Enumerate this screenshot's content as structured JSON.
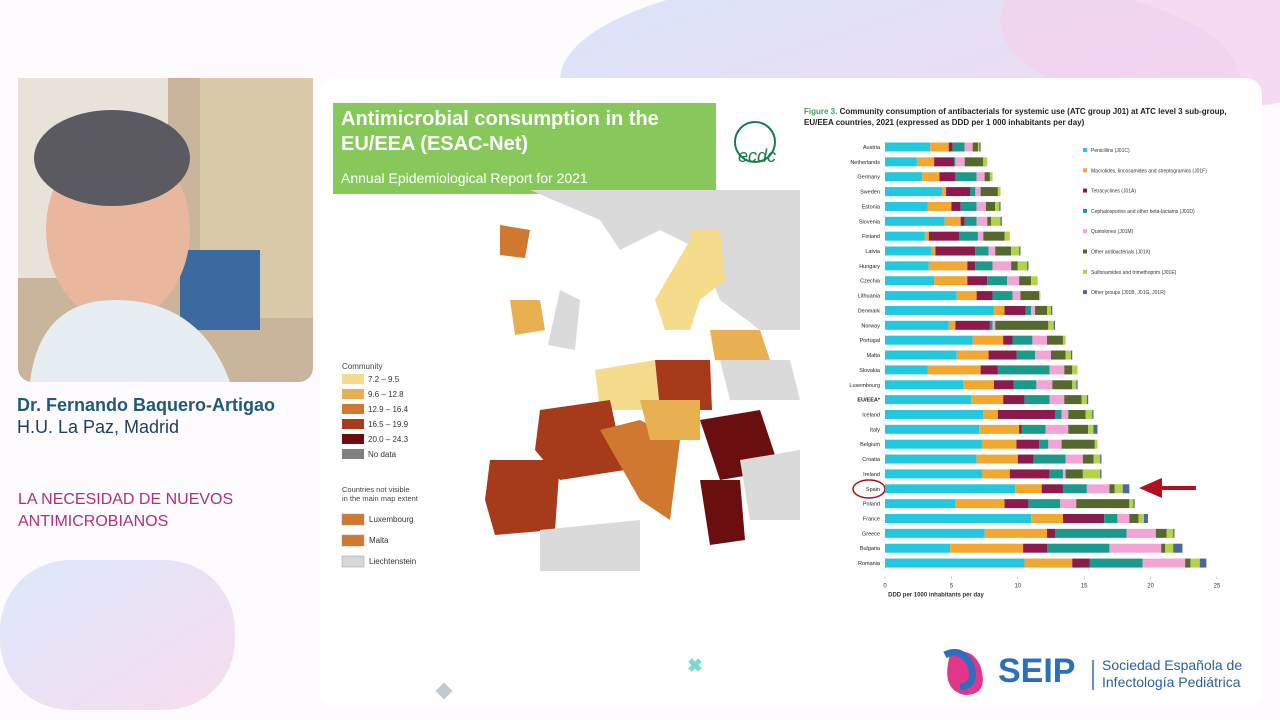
{
  "speaker": {
    "name": "Dr. Fernando Baquero-Artigao",
    "affiliation": "H.U. La Paz, Madrid"
  },
  "slide": {
    "topic": [
      "LA NECESIDAD DE NUEVOS",
      "ANTIMICROBIANOS"
    ],
    "header_title": "Antimicrobial consumption in the EU/EEA (ESAC-Net)",
    "header_subtitle": "Annual Epidemiological Report for 2021",
    "logo_ecdc": "ecdc"
  },
  "map_legend": {
    "title": "Community",
    "items": [
      {
        "label": "7.2 – 9.5",
        "color": "#f5dc8c"
      },
      {
        "label": "9.6 – 12.8",
        "color": "#e8b050"
      },
      {
        "label": "12.9 – 16.4",
        "color": "#d07830"
      },
      {
        "label": "16.5 – 19.9",
        "color": "#a83a1c"
      },
      {
        "label": "20.0 – 24.3",
        "color": "#6a0e10"
      },
      {
        "label": "No data",
        "color": "#808080"
      }
    ],
    "extra_title": [
      "Countries not visible",
      "in the main map extent"
    ],
    "extra_items": [
      {
        "label": "Luxembourg",
        "color": "#d07830"
      },
      {
        "label": "Malta",
        "color": "#d07830"
      },
      {
        "label": "Liechtenstein",
        "color": "#d8d8d8"
      }
    ]
  },
  "chart_data": {
    "type": "bar",
    "orientation": "horizontal",
    "stacked": true,
    "title_prefix": "Figure 3.",
    "title": "Community consumption of antibacterials for systemic use (ATC group J01) at ATC level 3 sub-group, EU/EEA countries, 2021 (expressed as DDD per 1 000 inhabitants per day)",
    "categories": [
      "Austria",
      "Netherlands",
      "Germany",
      "Sweden",
      "Estonia",
      "Slovenia",
      "Finland",
      "Latvia",
      "Hungary",
      "Czechia",
      "Lithuania",
      "Denmark",
      "Norway",
      "Portugal",
      "Malta",
      "Slovakia",
      "Luxembourg",
      "EU/EEA*",
      "Iceland",
      "Italy",
      "Belgium",
      "Croatia",
      "Ireland",
      "Spain",
      "Poland",
      "France",
      "Greece",
      "Bulgaria",
      "Romania"
    ],
    "series": [
      {
        "name": "Penicillins (J01C)",
        "color": "#22c8e0",
        "values": [
          3.4,
          2.4,
          2.8,
          4.3,
          3.2,
          4.5,
          3.0,
          3.5,
          3.3,
          3.7,
          5.4,
          8.2,
          4.8,
          6.6,
          5.4,
          3.2,
          5.9,
          6.5,
          7.4,
          7.1,
          7.3,
          6.9,
          7.3,
          9.8,
          5.3,
          11.0,
          7.5,
          4.9,
          10.5
        ]
      },
      {
        "name": "Macrolides, lincosamides and streptogramins (J01F)",
        "color": "#f2a830",
        "values": [
          1.4,
          1.3,
          1.3,
          0.3,
          1.8,
          1.2,
          0.3,
          0.3,
          2.9,
          2.5,
          1.5,
          0.8,
          0.5,
          2.3,
          2.4,
          4.0,
          2.3,
          2.4,
          1.1,
          3.0,
          2.6,
          3.1,
          2.1,
          2.0,
          3.7,
          2.4,
          4.7,
          5.5,
          3.6
        ]
      },
      {
        "name": "Tetracyclines (J01A)",
        "color": "#8c1a4c",
        "values": [
          0.3,
          1.5,
          1.2,
          1.8,
          0.7,
          0.3,
          2.3,
          3.0,
          0.6,
          1.5,
          1.2,
          1.6,
          2.6,
          0.7,
          2.1,
          1.3,
          1.5,
          1.6,
          4.3,
          0.2,
          1.7,
          1.2,
          3.0,
          1.6,
          1.8,
          3.1,
          0.6,
          1.8,
          1.3
        ]
      },
      {
        "name": "Cephalosporins and other beta-lactams (J01D)",
        "color": "#1a9a8c",
        "values": [
          0.9,
          0.1,
          1.6,
          0.4,
          1.2,
          0.9,
          1.4,
          1.0,
          1.3,
          1.5,
          1.5,
          0.4,
          0.2,
          1.5,
          1.4,
          3.9,
          1.7,
          1.9,
          0.5,
          1.8,
          0.7,
          2.4,
          1.0,
          1.8,
          2.4,
          1.0,
          5.4,
          4.7,
          4.0
        ]
      },
      {
        "name": "Quinolones (J01M)",
        "color": "#f4a4d4",
        "values": [
          0.6,
          0.7,
          0.6,
          0.4,
          0.7,
          0.8,
          0.4,
          0.5,
          1.4,
          0.9,
          0.6,
          0.3,
          0.2,
          1.1,
          1.2,
          1.1,
          1.2,
          1.1,
          0.5,
          1.7,
          1.0,
          1.3,
          0.2,
          1.7,
          1.2,
          0.9,
          2.2,
          3.9,
          3.2
        ]
      },
      {
        "name": "Other antibacterials (J01X)",
        "color": "#56682e",
        "values": [
          0.4,
          1.4,
          0.4,
          1.3,
          0.7,
          0.3,
          1.6,
          1.2,
          0.5,
          0.9,
          1.4,
          0.9,
          4.0,
          1.2,
          1.1,
          0.6,
          1.5,
          1.3,
          1.3,
          1.5,
          2.5,
          0.8,
          1.3,
          0.4,
          4.0,
          0.7,
          0.8,
          0.3,
          0.4
        ]
      },
      {
        "name": "Sulfonamides and trimethoprim (J01E)",
        "color": "#b4d448",
        "values": [
          0.1,
          0.3,
          0.2,
          0.2,
          0.3,
          0.7,
          0.4,
          0.6,
          0.7,
          0.5,
          0.1,
          0.3,
          0.4,
          0.2,
          0.4,
          0.4,
          0.3,
          0.4,
          0.5,
          0.4,
          0.2,
          0.5,
          1.3,
          0.6,
          0.3,
          0.4,
          0.5,
          0.6,
          0.7
        ]
      },
      {
        "name": "Other groups (J01B, J01G, J01R)",
        "color": "#4a6a9c",
        "values": [
          0.1,
          0.0,
          0.0,
          0.0,
          0.1,
          0.1,
          0.0,
          0.1,
          0.1,
          0.0,
          0.0,
          0.1,
          0.1,
          0.0,
          0.1,
          0.0,
          0.1,
          0.1,
          0.1,
          0.3,
          0.0,
          0.1,
          0.1,
          0.5,
          0.1,
          0.3,
          0.1,
          0.7,
          0.5
        ]
      }
    ],
    "xlim": [
      0,
      25
    ],
    "xticks": [
      0,
      5,
      10,
      15,
      20,
      25
    ],
    "xlabel": "DDD per 1000 inhabitants per day"
  },
  "footer": {
    "logo": "SEIP",
    "org": [
      "Sociedad Española de",
      "Infectología Pediátrica"
    ]
  }
}
